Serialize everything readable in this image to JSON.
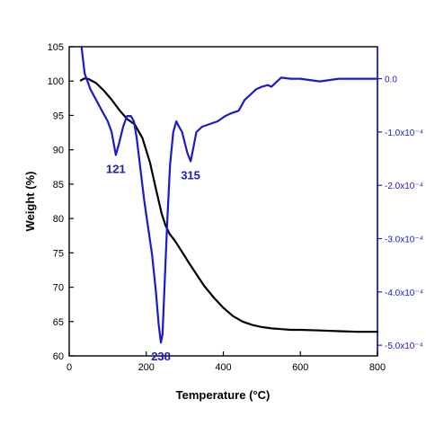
{
  "chart_data": {
    "type": "line",
    "title": "",
    "xlabel": "Temperature (°C)",
    "ylabel": "Weight (%)",
    "xlim": [
      0,
      800
    ],
    "ylim": [
      60,
      105
    ],
    "y2lim": [
      -0.00052,
      6e-05
    ],
    "x_ticks": [
      0,
      200,
      400,
      600,
      800
    ],
    "y_ticks": [
      60,
      65,
      70,
      75,
      80,
      85,
      90,
      95,
      100,
      105
    ],
    "y2_ticks": [
      {
        "value": 0,
        "label": "0.0"
      },
      {
        "value": -0.0001,
        "label": "-1.0x10⁻⁴"
      },
      {
        "value": -0.0002,
        "label": "-2.0x10⁻⁴"
      },
      {
        "value": -0.0003,
        "label": "-3.0x10⁻⁴"
      },
      {
        "value": -0.0004,
        "label": "-4.0x10⁻⁴"
      },
      {
        "value": -0.0005,
        "label": "-5.0x10⁻⁴"
      }
    ],
    "grid": false,
    "series": [
      {
        "axis": "left",
        "color": "#000000",
        "x": [
          30,
          40,
          50,
          70,
          90,
          110,
          130,
          150,
          170,
          190,
          210,
          225,
          240,
          250,
          260,
          275,
          290,
          310,
          330,
          350,
          375,
          400,
          425,
          450,
          475,
          500,
          525,
          550,
          575,
          600,
          650,
          700,
          750,
          800
        ],
        "y": [
          100.1,
          100.4,
          100.3,
          99.7,
          98.6,
          97.3,
          95.8,
          94.5,
          93.7,
          91.7,
          88.1,
          84.3,
          80.7,
          79.0,
          77.8,
          76.7,
          75.4,
          73.6,
          71.9,
          70.2,
          68.5,
          67.0,
          65.8,
          65.0,
          64.5,
          64.2,
          64.0,
          63.9,
          63.8,
          63.8,
          63.7,
          63.6,
          63.5,
          63.5
        ]
      },
      {
        "axis": "right",
        "color": "#1a1acc",
        "x": [
          32,
          40,
          55,
          70,
          85,
          100,
          110,
          121,
          130,
          140,
          150,
          160,
          168,
          175,
          185,
          195,
          205,
          215,
          225,
          232,
          238,
          242,
          248,
          255,
          262,
          270,
          278,
          285,
          293,
          300,
          307,
          315,
          322,
          330,
          345,
          365,
          385,
          405,
          420,
          440,
          455,
          470,
          485,
          500,
          515,
          525,
          535,
          550,
          575,
          600,
          650,
          700,
          750,
          800
        ],
        "y": [
          6e-05,
          1e-05,
          -2e-05,
          -4e-05,
          -6e-05,
          -8e-05,
          -0.0001,
          -0.000143,
          -0.00012,
          -9e-05,
          -7e-05,
          -7e-05,
          -8e-05,
          -0.00011,
          -0.00017,
          -0.00023,
          -0.00028,
          -0.00033,
          -0.0004,
          -0.00046,
          -0.000495,
          -0.00048,
          -0.00038,
          -0.00026,
          -0.00016,
          -0.0001,
          -8e-05,
          -9e-05,
          -0.0001,
          -0.00012,
          -0.00014,
          -0.000155,
          -0.00013,
          -0.0001,
          -9e-05,
          -8.5e-05,
          -8e-05,
          -7e-05,
          -6.5e-05,
          -6e-05,
          -4e-05,
          -3e-05,
          -2e-05,
          -1.5e-05,
          -1.2e-05,
          -1.5e-05,
          -8e-06,
          2e-06,
          0.0,
          0.0,
          -5e-06,
          0.0,
          0.0,
          0.0
        ]
      }
    ],
    "annotations": [
      {
        "text": "121",
        "x": 121,
        "y2": -0.000143
      },
      {
        "text": "238",
        "x": 238,
        "y2": -0.000495
      },
      {
        "text": "315",
        "x": 315,
        "y2": -0.000155
      }
    ]
  }
}
